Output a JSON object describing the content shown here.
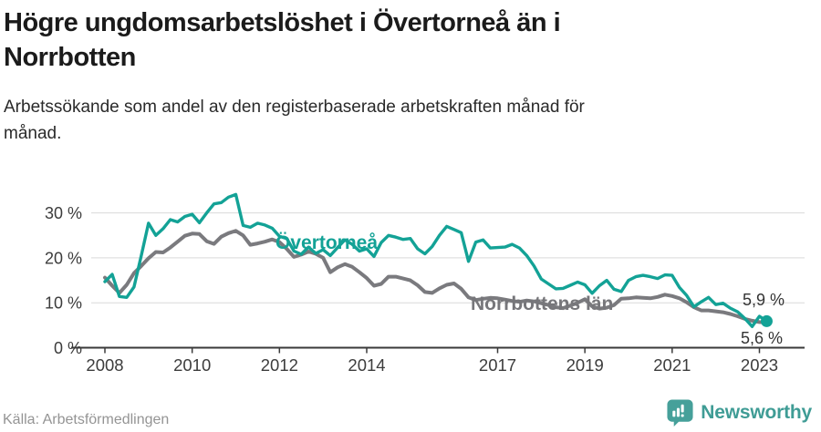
{
  "header": {
    "title_lines": [
      "Högre ungdomsarbetslöshet i Övertorneå än i",
      "Norrbotten"
    ],
    "subtitle_lines": [
      "Arbetssökande som andel av den registerbaserade arbetskraften månad för",
      "månad."
    ]
  },
  "footer": {
    "source": "Källa: Arbetsförmedlingen",
    "brand": "Newsworthy"
  },
  "colors": {
    "accent_teal": "#13a296",
    "series_gray": "#7a7a7e",
    "label_gray": "#76767a",
    "axis_text": "#3c3c3c",
    "gridline": "#d9d9d9",
    "axis_line": "#3a3a3a",
    "end_label": "#333333",
    "brand_teal": "#3f9c95"
  },
  "chart_data": {
    "type": "line",
    "title": "Högre ungdomsarbetslöshet i Övertorneå än i Norrbotten",
    "xlabel": "",
    "ylabel": "",
    "x_start": 2008.0,
    "x_step_years": 0.1666667,
    "xlim": [
      2007.6,
      2023.6
    ],
    "ylim": [
      0,
      36
    ],
    "grid": true,
    "legend_position": "inline-labels",
    "y_ticks": [
      {
        "value": 0,
        "label": "0 %"
      },
      {
        "value": 10,
        "label": "10 %"
      },
      {
        "value": 20,
        "label": "20 %"
      },
      {
        "value": 30,
        "label": "30 %"
      }
    ],
    "x_ticks": [
      {
        "year": 2008,
        "label": "2008"
      },
      {
        "year": 2010,
        "label": "2010"
      },
      {
        "year": 2012,
        "label": "2012"
      },
      {
        "year": 2014,
        "label": "2014"
      },
      {
        "year": 2017,
        "label": "2017"
      },
      {
        "year": 2019,
        "label": "2019"
      },
      {
        "year": 2021,
        "label": "2021"
      },
      {
        "year": 2023,
        "label": "2023"
      }
    ],
    "series": [
      {
        "name": "Övertorneå",
        "color": "#13a296",
        "end_label": "5,9 %",
        "end_dot": true,
        "values": [
          14.7,
          16.3,
          11.4,
          11.2,
          13.5,
          20.5,
          27.7,
          25.0,
          26.5,
          28.5,
          28.0,
          29.2,
          29.7,
          27.8,
          30.0,
          32.0,
          32.3,
          33.5,
          34.1,
          27.2,
          26.8,
          27.7,
          27.3,
          26.6,
          24.8,
          24.3,
          21.5,
          20.8,
          22.4,
          21.0,
          21.8,
          20.5,
          22.3,
          24.0,
          23.0,
          21.5,
          22.0,
          20.3,
          23.4,
          25.0,
          24.6,
          24.1,
          24.3,
          22.0,
          20.9,
          22.5,
          25.0,
          27.0,
          26.3,
          25.6,
          19.2,
          23.5,
          24.0,
          22.2,
          22.3,
          22.4,
          23.0,
          22.2,
          20.5,
          18.2,
          15.3,
          14.2,
          13.1,
          13.2,
          13.9,
          14.6,
          14.0,
          12.1,
          13.8,
          15.0,
          13.0,
          12.5,
          15.0,
          15.8,
          16.1,
          15.8,
          15.4,
          16.2,
          16.1,
          13.4,
          11.6,
          9.1,
          10.2,
          11.2,
          9.6,
          9.9,
          8.8,
          8.0,
          6.5,
          4.7,
          7.0,
          5.9
        ]
      },
      {
        "name": "Norrbottens län",
        "color": "#7a7a7e",
        "end_label": "5,6 %",
        "end_dot": false,
        "values": [
          15.6,
          13.8,
          12.2,
          14.0,
          16.6,
          18.2,
          19.9,
          21.3,
          21.2,
          22.3,
          23.6,
          24.9,
          25.4,
          25.3,
          23.7,
          23.1,
          24.7,
          25.5,
          26.0,
          25.0,
          22.9,
          23.2,
          23.6,
          24.1,
          23.5,
          22.0,
          20.2,
          20.7,
          21.4,
          20.9,
          20.0,
          16.8,
          17.9,
          18.6,
          18.0,
          16.8,
          15.5,
          13.8,
          14.2,
          15.8,
          15.8,
          15.4,
          15.0,
          13.9,
          12.4,
          12.2,
          13.2,
          14.0,
          14.3,
          13.1,
          11.2,
          10.6,
          10.9,
          11.1,
          11.0,
          10.7,
          10.4,
          10.2,
          10.5,
          10.3,
          9.9,
          9.5,
          9.0,
          8.8,
          9.4,
          10.0,
          10.8,
          9.2,
          8.7,
          8.9,
          9.5,
          10.9,
          11.0,
          11.2,
          11.1,
          11.0,
          11.3,
          11.8,
          11.5,
          11.0,
          10.1,
          9.0,
          8.3,
          8.3,
          8.1,
          7.9,
          7.5,
          7.0,
          6.4,
          6.0,
          5.7,
          5.6
        ]
      }
    ]
  }
}
